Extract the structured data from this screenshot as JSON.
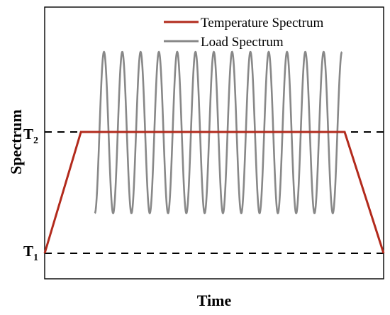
{
  "chart_data": {
    "type": "line",
    "title": "",
    "xlabel": "Time",
    "ylabel": "Spectrum",
    "y_ticks": [
      {
        "base": "T",
        "sub": "1",
        "value": 1
      },
      {
        "base": "T",
        "sub": "2",
        "value": 2
      }
    ],
    "reference_lines": [
      {
        "y": 1,
        "style": "dashed"
      },
      {
        "y": 2,
        "style": "dashed"
      }
    ],
    "legend": {
      "placement": "top-right"
    },
    "series": [
      {
        "name": "Temperature Spectrum",
        "color": "#b22a1c",
        "x": [
          0.0,
          0.107,
          0.885,
          1.0
        ],
        "y": [
          1,
          2,
          2,
          1
        ]
      },
      {
        "name": "Load Spectrum",
        "color": "#888888",
        "waveform": "sine",
        "cycles": 13.5,
        "x_start": 0.148,
        "x_end": 0.877,
        "y_min": 1.33,
        "y_max": 2.66
      }
    ],
    "xlim": [
      0,
      1
    ],
    "ylim": [
      0.8,
      2.9
    ],
    "grid": false
  }
}
